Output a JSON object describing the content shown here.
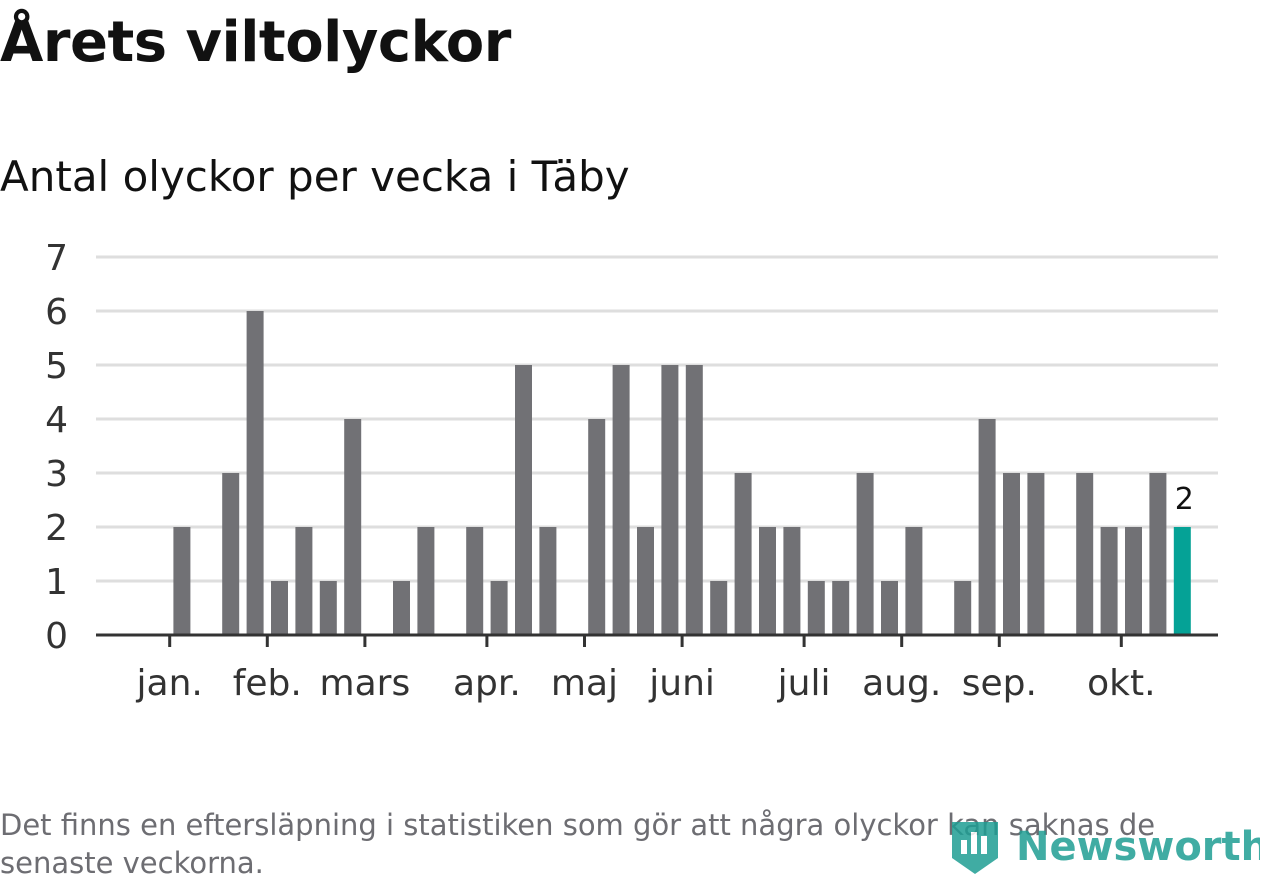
{
  "title": "Årets viltolyckor",
  "subtitle": "Antal olyckor per vecka i Täby",
  "footnote": "Det finns en eftersläpning i statistiken som gör att några olyckor kan saknas de senaste veckorna.",
  "logo": {
    "text": "Newsworthy",
    "icon": "bar-chart-badge-icon"
  },
  "colors": {
    "bar": "#717175",
    "highlight": "#05a296",
    "grid": "#dedede",
    "axis": "#333333",
    "logo": "#1f9e93"
  },
  "chart_data": {
    "type": "bar",
    "title": "Antal olyckor per vecka i Täby",
    "ylim": [
      0,
      7
    ],
    "yticks": [
      0,
      1,
      2,
      3,
      4,
      5,
      6,
      7
    ],
    "grid": true,
    "x_unit": "week",
    "weeks": [
      1,
      2,
      3,
      4,
      5,
      6,
      7,
      8,
      9,
      10,
      11,
      12,
      13,
      14,
      15,
      16,
      17,
      18,
      19,
      20,
      21,
      22,
      23,
      24,
      25,
      26,
      27,
      28,
      29,
      30,
      31,
      32,
      33,
      34,
      35,
      36,
      37,
      38,
      39,
      40,
      41,
      42,
      43,
      44
    ],
    "values": [
      0,
      2,
      0,
      3,
      6,
      1,
      2,
      1,
      4,
      0,
      1,
      2,
      0,
      2,
      1,
      5,
      2,
      0,
      4,
      5,
      2,
      5,
      5,
      1,
      3,
      2,
      2,
      1,
      1,
      3,
      1,
      2,
      0,
      1,
      4,
      3,
      3,
      0,
      3,
      2,
      2,
      3,
      2,
      null
    ],
    "highlight_index": 42,
    "highlight_label": "2",
    "month_labels": [
      {
        "label": "jan.",
        "week": 1.5
      },
      {
        "label": "feb.",
        "week": 5.5
      },
      {
        "label": "mars",
        "week": 9.5
      },
      {
        "label": "apr.",
        "week": 14.5
      },
      {
        "label": "maj",
        "week": 18.5
      },
      {
        "label": "juni",
        "week": 22.5
      },
      {
        "label": "juli",
        "week": 27.5
      },
      {
        "label": "aug.",
        "week": 31.5
      },
      {
        "label": "sep.",
        "week": 35.5
      },
      {
        "label": "okt.",
        "week": 40.5
      }
    ]
  }
}
